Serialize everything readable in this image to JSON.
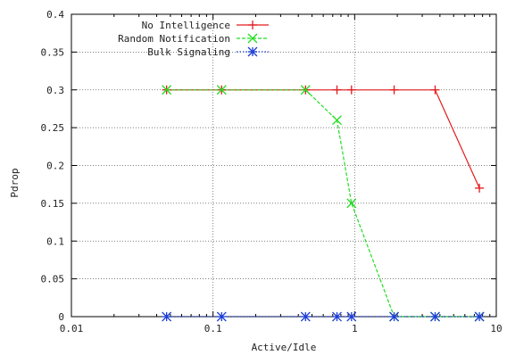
{
  "chart_data": {
    "type": "line",
    "xlabel": "Active/Idle",
    "ylabel": "Pdrop",
    "x_scale": "log",
    "xlim": [
      0.01,
      10
    ],
    "ylim": [
      0,
      0.4
    ],
    "x_ticks": [
      0.01,
      0.1,
      1,
      10
    ],
    "x_tick_labels": [
      "0.01",
      "0.1",
      "1",
      "10"
    ],
    "y_ticks": [
      0,
      0.05,
      0.1,
      0.15,
      0.2,
      0.25,
      0.3,
      0.35,
      0.4
    ],
    "y_tick_labels": [
      "0",
      "0.05",
      "0.1",
      "0.15",
      "0.2",
      "0.25",
      "0.3",
      "0.35",
      "0.4"
    ],
    "grid": true,
    "legend_position": "top-right",
    "series": [
      {
        "name": "No Intelligence",
        "color": "#e41a1c",
        "marker": "plus",
        "line": "solid",
        "x": [
          0.047,
          0.115,
          0.45,
          0.75,
          0.95,
          1.9,
          3.7,
          7.6
        ],
        "y": [
          0.3,
          0.3,
          0.3,
          0.3,
          0.3,
          0.3,
          0.3,
          0.17
        ]
      },
      {
        "name": "Random Notification",
        "color": "#22dd22",
        "marker": "x",
        "line": "dashed",
        "x": [
          0.047,
          0.115,
          0.45,
          0.75,
          0.95,
          1.9,
          3.7,
          7.6
        ],
        "y": [
          0.3,
          0.3,
          0.3,
          0.26,
          0.15,
          0.0,
          0.0,
          0.0
        ]
      },
      {
        "name": "Bulk Signaling",
        "color": "#1f3fd6",
        "marker": "star",
        "line": "dotted",
        "x": [
          0.047,
          0.115,
          0.45,
          0.75,
          0.95,
          1.9,
          3.7,
          7.6
        ],
        "y": [
          0.0,
          0.0,
          0.0,
          0.0,
          0.0,
          0.0,
          0.0,
          0.0
        ]
      }
    ]
  }
}
